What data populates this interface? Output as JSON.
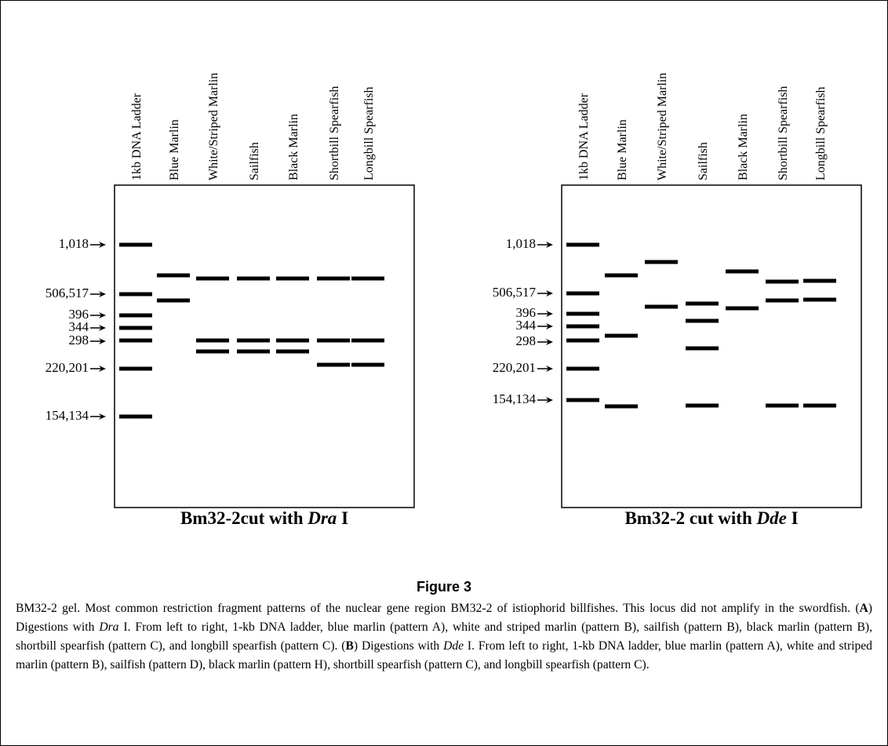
{
  "gels": [
    {
      "lanes": [
        "1kb DNA Ladder",
        "Blue Marlin",
        "White/Striped Marlin",
        "Sailfish",
        "Black Marlin",
        "Shortbill Spearfish",
        "Longbill Spearfish"
      ],
      "markers": [
        "1,018",
        "506,517",
        "396",
        "344",
        "298",
        "220,201",
        "154,134"
      ],
      "title": [
        "Bm32-2cut with ",
        "Dra",
        " I"
      ]
    },
    {
      "lanes": [
        "1kb DNA Ladder",
        "Blue Marlin",
        "White/Striped Marlin",
        "Sailfish",
        "Black Marlin",
        "Shortbill Spearfish",
        "Longbill Spearfish"
      ],
      "markers": [
        "1,018",
        "506,517",
        "396",
        "344",
        "298",
        "220,201",
        "154,134"
      ],
      "title": [
        "Bm32-2 cut with ",
        "Dde",
        " I"
      ]
    }
  ],
  "caption": {
    "label": "Figure 3",
    "text": [
      "BM32-2 gel. Most common restriction fragment patterns of the nuclear gene region BM32-2 of istiophorid billfishes. This locus did not amplify in the swordfish. (",
      "A",
      ") Digestions with ",
      "Dra",
      " I. From left to right, 1-kb DNA ladder, blue marlin (pattern A), white and striped marlin (pattern B), sailfish (pattern B), black marlin (pattern B), shortbill spearfish (pattern C), and longbill spearfish (pattern C). (",
      "B",
      ") Digestions with ",
      "Dde",
      " I. From left to right, 1-kb DNA ladder, blue marlin (pattern A), white and striped marlin (pattern B), sailfish (pattern D), black marlin (pattern H), shortbill spearfish (pattern C), and longbill spearfish (pattern C)."
    ]
  }
}
